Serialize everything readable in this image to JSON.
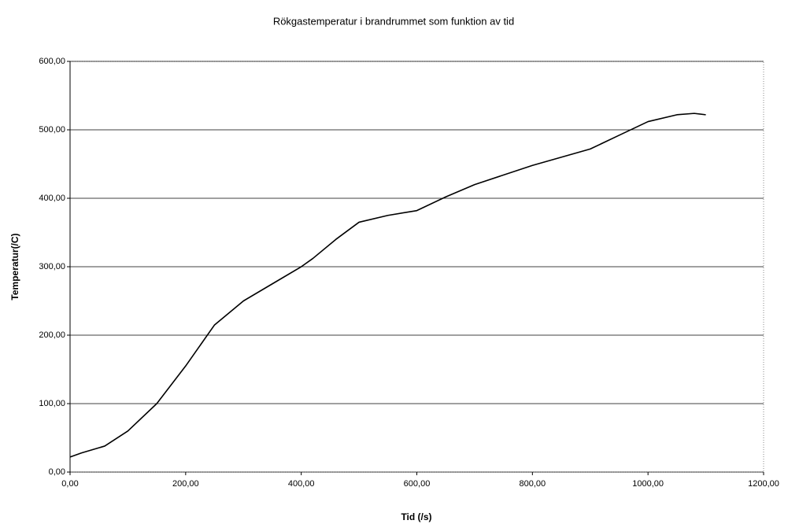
{
  "chart_data": {
    "type": "line",
    "title": "Rökgastemperatur i brandrummet som funktion av tid",
    "x_label": "Tid (/s)",
    "y_label": "Temperatur(/C)",
    "x": [
      0,
      20,
      60,
      100,
      150,
      200,
      250,
      300,
      350,
      400,
      420,
      460,
      500,
      550,
      600,
      650,
      700,
      800,
      900,
      950,
      1000,
      1050,
      1080,
      1100
    ],
    "series": [
      {
        "color": "#000000",
        "values": [
          22,
          28,
          38,
          60,
          100,
          155,
          215,
          250,
          275,
          300,
          312,
          340,
          365,
          375,
          382,
          402,
          420,
          448,
          472,
          492,
          512,
          522,
          524,
          522
        ]
      }
    ],
    "xlim": [
      0,
      1200
    ],
    "xticks": [
      {
        "value": 0,
        "label": "0,00"
      },
      {
        "value": 200,
        "label": "200,00"
      },
      {
        "value": 400,
        "label": "400,00"
      },
      {
        "value": 600,
        "label": "600,00"
      },
      {
        "value": 800,
        "label": "800,00"
      },
      {
        "value": 1000,
        "label": "1000,00"
      },
      {
        "value": 1200,
        "label": "1200,00"
      }
    ],
    "ylim": [
      0,
      600
    ],
    "yticks": [
      {
        "value": 0,
        "label": "0,00"
      },
      {
        "value": 100,
        "label": "100,00"
      },
      {
        "value": 200,
        "label": "200,00"
      },
      {
        "value": 300,
        "label": "300,00"
      },
      {
        "value": 400,
        "label": "400,00"
      },
      {
        "value": 500,
        "label": "500,00"
      },
      {
        "value": 600,
        "label": "600,00"
      }
    ],
    "grid": true
  }
}
